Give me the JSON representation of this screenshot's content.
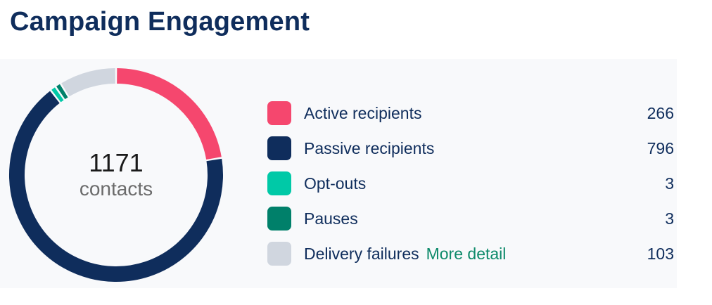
{
  "title": "Campaign Engagement",
  "center": {
    "total": "1171",
    "unit": "contacts"
  },
  "chart_data": {
    "type": "pie",
    "categories": [
      "Active recipients",
      "Passive recipients",
      "Opt-outs",
      "Pauses",
      "Delivery failures"
    ],
    "values": [
      266,
      796,
      3,
      3,
      103
    ],
    "colors": [
      "#f5476e",
      "#0f2d5c",
      "#00c9a7",
      "#00806a",
      "#d0d6df"
    ],
    "legend": "right"
  },
  "legend": [
    {
      "label": "Active recipients",
      "value": "266"
    },
    {
      "label": "Passive recipients",
      "value": "796"
    },
    {
      "label": "Opt-outs",
      "value": "3"
    },
    {
      "label": "Pauses",
      "value": "3"
    },
    {
      "label": "Delivery failures",
      "link": "More detail",
      "value": "103"
    }
  ]
}
